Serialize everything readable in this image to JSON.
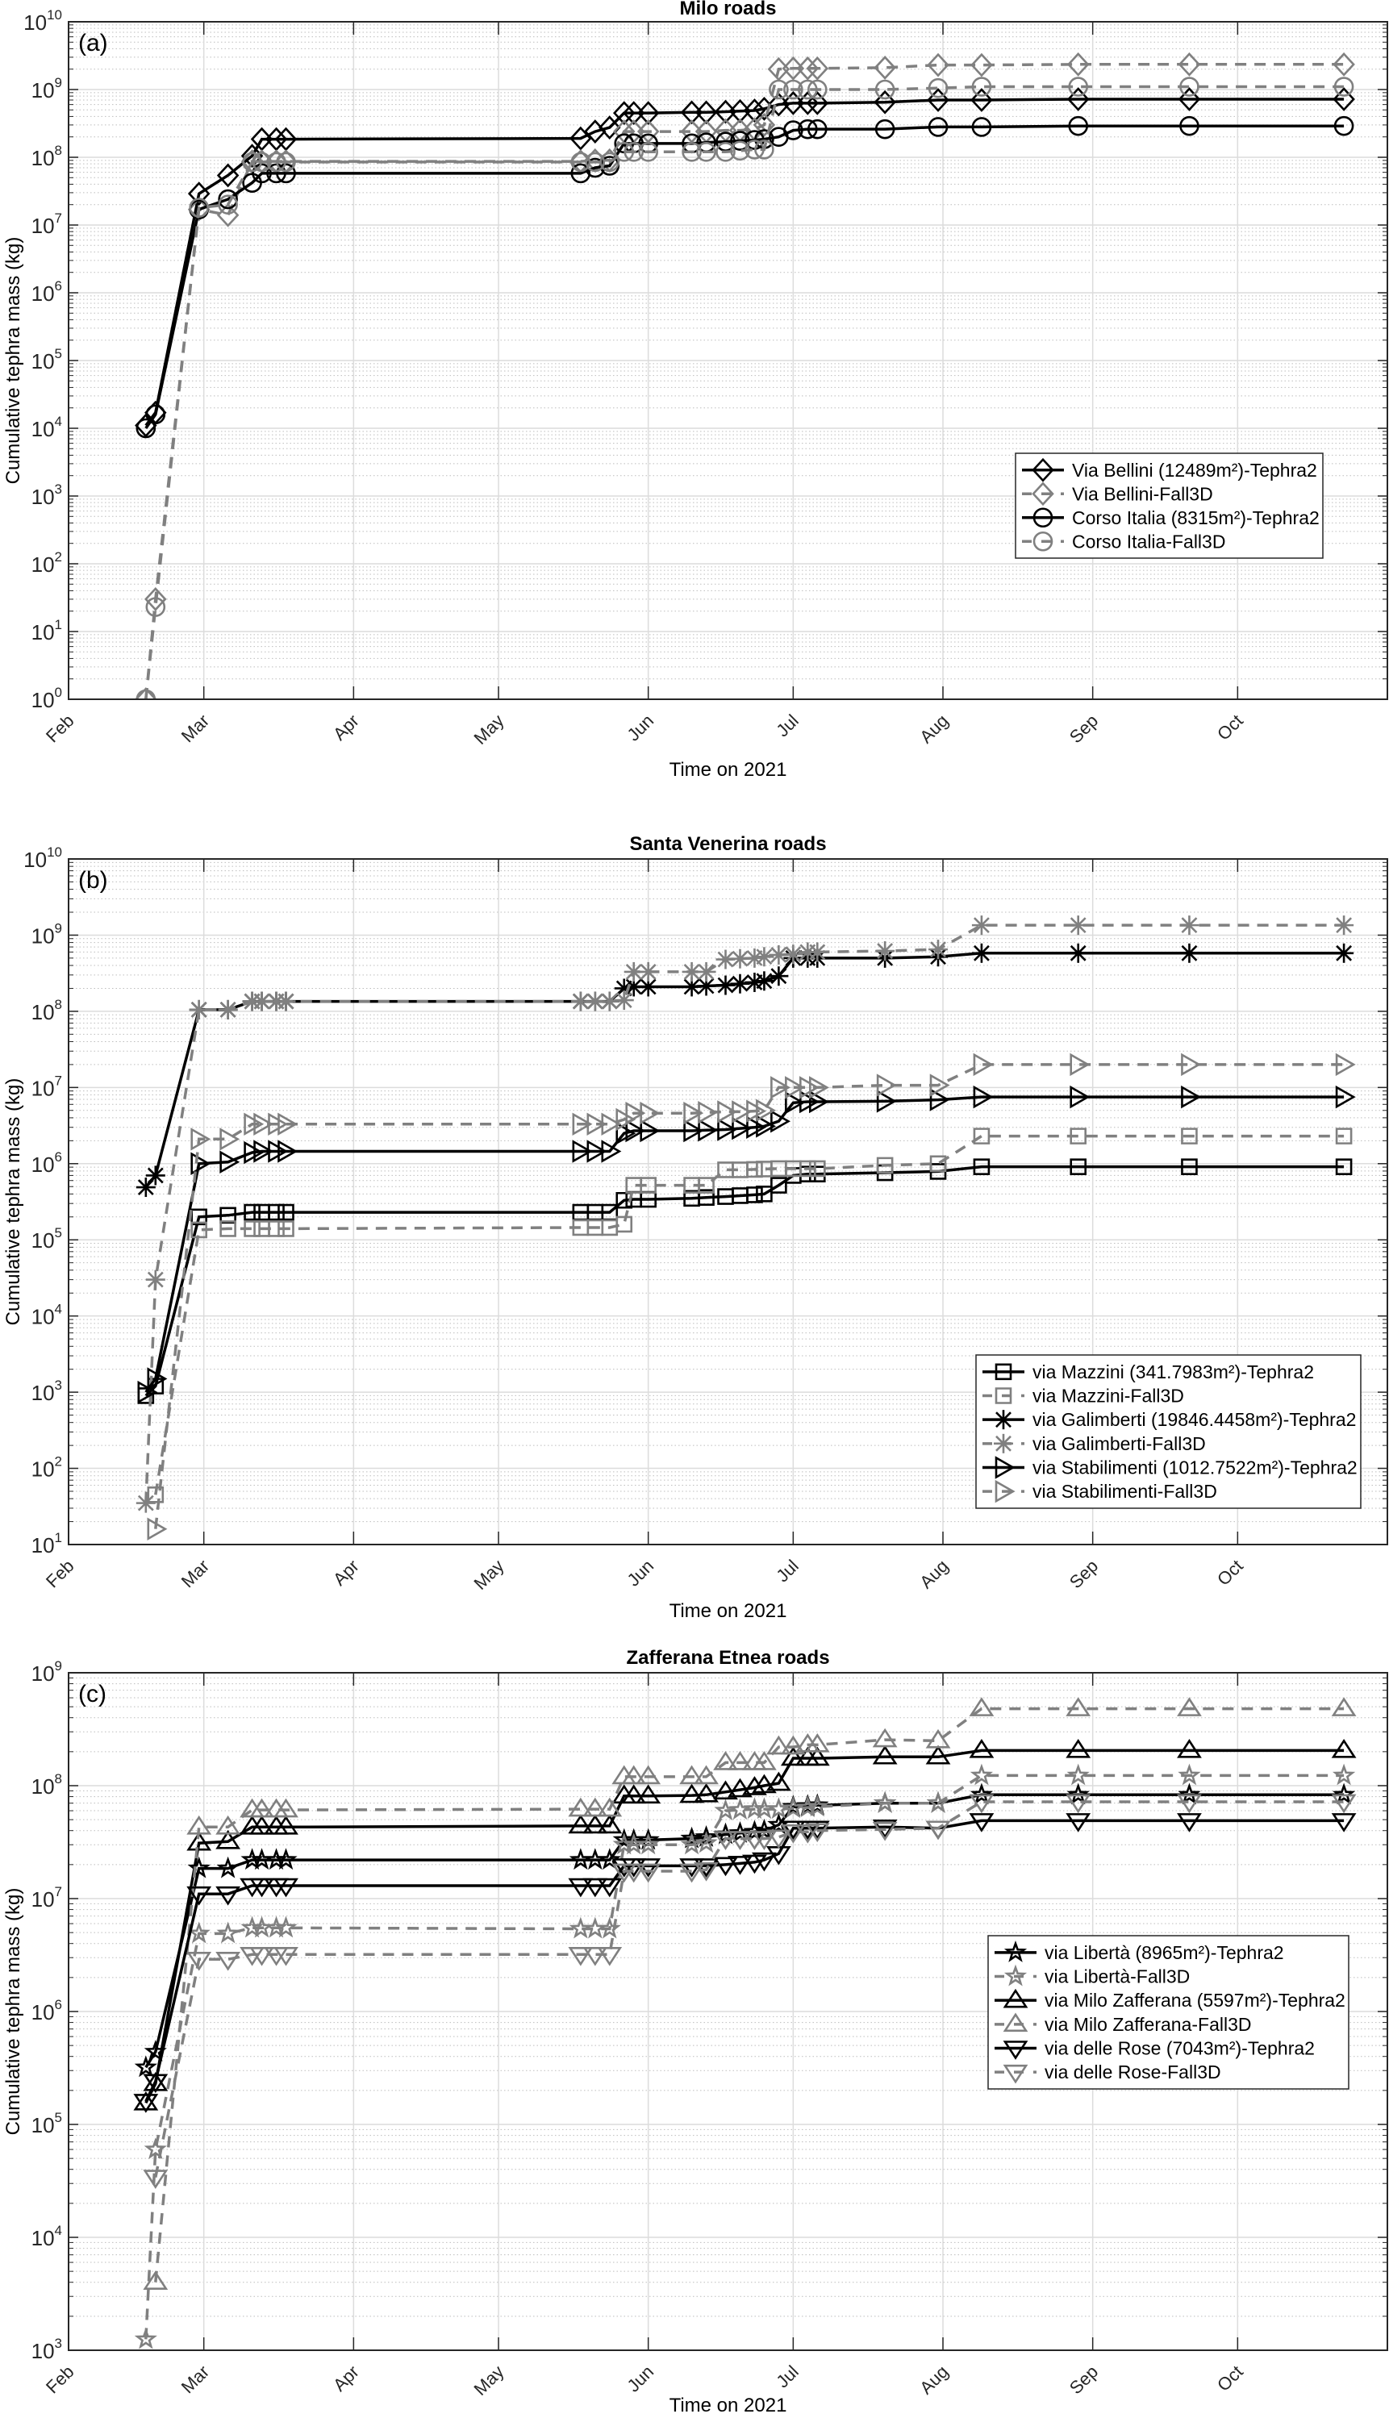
{
  "chart_data": [
    {
      "type": "line",
      "panel_label": "(a)",
      "title": "Milo roads",
      "xlabel": "Time on 2021",
      "ylabel": "Cumulative tephra mass (kg)",
      "yscale": "log",
      "ylim": [
        1,
        10000000000
      ],
      "xlim": [
        "2021-02-01",
        "2021-11-01"
      ],
      "xticks": [
        "Feb",
        "Mar",
        "Apr",
        "May",
        "Jun",
        "Jul",
        "Aug",
        "Sep",
        "Oct"
      ],
      "grid": true,
      "legend_position": "right",
      "x": [
        "2021-02-17",
        "2021-02-19",
        "2021-02-28",
        "2021-03-06",
        "2021-03-11",
        "2021-03-13",
        "2021-03-16",
        "2021-03-18",
        "2021-05-18",
        "2021-05-21",
        "2021-05-24",
        "2021-05-27",
        "2021-05-29",
        "2021-06-01",
        "2021-06-10",
        "2021-06-13",
        "2021-06-17",
        "2021-06-20",
        "2021-06-23",
        "2021-06-25",
        "2021-06-28",
        "2021-07-01",
        "2021-07-04",
        "2021-07-06",
        "2021-07-20",
        "2021-07-31",
        "2021-08-09",
        "2021-08-29",
        "2021-09-21",
        "2021-10-23"
      ],
      "series": [
        {
          "name": "Via Bellini (12489m²)-Tephra2",
          "marker": "diamond",
          "color": "#000000",
          "dashed": false,
          "values": [
            11000.0,
            17000.0,
            29000000.0,
            54000000.0,
            105000000.0,
            185000000.0,
            185000000.0,
            185000000.0,
            190000000.0,
            240000000.0,
            275000000.0,
            450000000.0,
            450000000.0,
            450000000.0,
            460000000.0,
            460000000.0,
            470000000.0,
            480000000.0,
            490000000.0,
            520000000.0,
            600000000.0,
            630000000.0,
            630000000.0,
            630000000.0,
            650000000.0,
            700000000.0,
            700000000.0,
            720000000.0,
            720000000.0,
            720000000.0
          ]
        },
        {
          "name": "Via Bellini-Fall3D",
          "marker": "diamond",
          "color": "#808080",
          "dashed": true,
          "values": [
            1,
            30,
            17000000.0,
            14000000.0,
            87000000.0,
            87000000.0,
            87000000.0,
            87000000.0,
            87000000.0,
            90000000.0,
            90000000.0,
            240000000.0,
            240000000.0,
            240000000.0,
            240000000.0,
            240000000.0,
            250000000.0,
            250000000.0,
            260000000.0,
            300000000.0,
            2000000000.0,
            2050000000.0,
            2050000000.0,
            2050000000.0,
            2100000000.0,
            2300000000.0,
            2300000000.0,
            2350000000.0,
            2350000000.0,
            2350000000.0
          ]
        },
        {
          "name": "Corso Italia (8315m²)-Tephra2",
          "marker": "circle",
          "color": "#000000",
          "dashed": false,
          "values": [
            10000.0,
            16000.0,
            17000000.0,
            24000000.0,
            42000000.0,
            58000000.0,
            58000000.0,
            58000000.0,
            58000000.0,
            70000000.0,
            75000000.0,
            160000000.0,
            160000000.0,
            160000000.0,
            160000000.0,
            165000000.0,
            170000000.0,
            175000000.0,
            180000000.0,
            185000000.0,
            200000000.0,
            250000000.0,
            260000000.0,
            260000000.0,
            260000000.0,
            280000000.0,
            280000000.0,
            290000000.0,
            290000000.0,
            290000000.0
          ]
        },
        {
          "name": "Corso Italia-Fall3D",
          "marker": "circle",
          "color": "#808080",
          "dashed": true,
          "values": [
            1,
            23,
            18000000.0,
            20000000.0,
            85000000.0,
            85000000.0,
            85000000.0,
            85000000.0,
            85000000.0,
            85000000.0,
            85000000.0,
            120000000.0,
            120000000.0,
            120000000.0,
            120000000.0,
            120000000.0,
            120000000.0,
            125000000.0,
            130000000.0,
            130000000.0,
            1000000000.0,
            1000000000.0,
            1000000000.0,
            1000000000.0,
            1000000000.0,
            1050000000.0,
            1100000000.0,
            1100000000.0,
            1100000000.0,
            1100000000.0
          ]
        }
      ]
    },
    {
      "type": "line",
      "panel_label": "(b)",
      "title": "Santa Venerina roads",
      "xlabel": "Time on 2021",
      "ylabel": "Cumulative tephra mass (kg)",
      "yscale": "log",
      "ylim": [
        10,
        10000000000
      ],
      "xlim": [
        "2021-02-01",
        "2021-11-01"
      ],
      "xticks": [
        "Feb",
        "Mar",
        "Apr",
        "May",
        "Jun",
        "Jul",
        "Aug",
        "Sep",
        "Oct"
      ],
      "grid": true,
      "legend_position": "bottom-right",
      "x": [
        "2021-02-17",
        "2021-02-19",
        "2021-02-28",
        "2021-03-06",
        "2021-03-11",
        "2021-03-13",
        "2021-03-16",
        "2021-03-18",
        "2021-05-18",
        "2021-05-21",
        "2021-05-24",
        "2021-05-27",
        "2021-05-29",
        "2021-06-01",
        "2021-06-10",
        "2021-06-13",
        "2021-06-17",
        "2021-06-20",
        "2021-06-23",
        "2021-06-25",
        "2021-06-28",
        "2021-07-01",
        "2021-07-04",
        "2021-07-06",
        "2021-07-20",
        "2021-07-31",
        "2021-08-09",
        "2021-08-29",
        "2021-09-21",
        "2021-10-23"
      ],
      "series": [
        {
          "name": "via Mazzini (341.7983m²)-Tephra2",
          "marker": "square",
          "color": "#000000",
          "dashed": false,
          "values": [
            900,
            1200,
            200000.0,
            210000.0,
            230000.0,
            230000.0,
            230000.0,
            230000.0,
            230000.0,
            230000.0,
            230000.0,
            330000.0,
            340000.0,
            340000.0,
            350000.0,
            360000.0,
            370000.0,
            380000.0,
            390000.0,
            400000.0,
            520000.0,
            700000.0,
            730000.0,
            730000.0,
            760000.0,
            790000.0,
            910000.0,
            910000.0,
            910000.0,
            910000.0
          ]
        },
        {
          "name": "via Mazzini-Fall3D",
          "marker": "square",
          "color": "#808080",
          "dashed": true,
          "values": [
            null,
            45,
            135000.0,
            140000.0,
            140000.0,
            140000.0,
            140000.0,
            140000.0,
            145000.0,
            145000.0,
            145000.0,
            160000.0,
            520000.0,
            520000.0,
            520000.0,
            520000.0,
            830000.0,
            830000.0,
            840000.0,
            850000.0,
            860000.0,
            860000.0,
            860000.0,
            860000.0,
            950000.0,
            1000000.0,
            2300000.0,
            2300000.0,
            2300000.0,
            2300000.0
          ]
        },
        {
          "name": "via Galimberti (19846.4458m²)-Tephra2",
          "marker": "asterisk",
          "color": "#000000",
          "dashed": false,
          "values": [
            490000.0,
            700000.0,
            105000000.0,
            105000000.0,
            135000000.0,
            135000000.0,
            135000000.0,
            135000000.0,
            135000000.0,
            135000000.0,
            135000000.0,
            200000000.0,
            210000000.0,
            210000000.0,
            210000000.0,
            215000000.0,
            220000000.0,
            230000000.0,
            240000000.0,
            250000000.0,
            290000000.0,
            500000000.0,
            500000000.0,
            500000000.0,
            500000000.0,
            520000000.0,
            580000000.0,
            580000000.0,
            580000000.0,
            580000000.0
          ]
        },
        {
          "name": "via Galimberti-Fall3D",
          "marker": "asterisk",
          "color": "#808080",
          "dashed": true,
          "values": [
            35,
            30000.0,
            105000000.0,
            105000000.0,
            135000000.0,
            135000000.0,
            135000000.0,
            135000000.0,
            135000000.0,
            135000000.0,
            135000000.0,
            140000000.0,
            330000000.0,
            330000000.0,
            330000000.0,
            330000000.0,
            480000000.0,
            490000000.0,
            500000000.0,
            520000000.0,
            550000000.0,
            560000000.0,
            600000000.0,
            600000000.0,
            620000000.0,
            650000000.0,
            1350000000.0,
            1350000000.0,
            1350000000.0,
            1350000000.0
          ]
        },
        {
          "name": "via Stabilimenti (1012.7522m²)-Tephra2",
          "marker": "triangle-right",
          "color": "#000000",
          "dashed": false,
          "values": [
            1000,
            1500,
            1000000.0,
            1050000.0,
            1400000.0,
            1450000.0,
            1450000.0,
            1450000.0,
            1450000.0,
            1450000.0,
            1450000.0,
            2500000.0,
            2700000.0,
            2700000.0,
            2700000.0,
            2750000.0,
            2800000.0,
            2900000.0,
            3000000.0,
            3100000.0,
            3600000.0,
            6300000.0,
            6500000.0,
            6500000.0,
            6600000.0,
            6900000.0,
            7500000.0,
            7500000.0,
            7500000.0,
            7500000.0
          ]
        },
        {
          "name": "via Stabilimenti-Fall3D",
          "marker": "triangle-right",
          "color": "#808080",
          "dashed": true,
          "values": [
            null,
            16,
            2100000.0,
            2100000.0,
            3300000.0,
            3300000.0,
            3300000.0,
            3300000.0,
            3300000.0,
            3300000.0,
            3300000.0,
            3800000.0,
            4600000.0,
            4600000.0,
            4600000.0,
            4700000.0,
            4800000.0,
            4800000.0,
            4900000.0,
            5000000.0,
            10000000.0,
            10000000.0,
            10000000.0,
            10000000.0,
            10700000.0,
            10700000.0,
            20000000.0,
            20000000.0,
            20000000.0,
            20000000.0
          ]
        }
      ]
    },
    {
      "type": "line",
      "panel_label": "(c)",
      "title": "Zafferana Etnea roads",
      "xlabel": "Time on 2021",
      "ylabel": "Cumulative tephra mass (kg)",
      "yscale": "log",
      "ylim": [
        1000,
        1000000000
      ],
      "xlim": [
        "2021-02-01",
        "2021-11-01"
      ],
      "xticks": [
        "Feb",
        "Mar",
        "Apr",
        "May",
        "Jun",
        "Jul",
        "Aug",
        "Sep",
        "Oct"
      ],
      "grid": true,
      "legend_position": "right",
      "x": [
        "2021-02-17",
        "2021-02-19",
        "2021-02-28",
        "2021-03-06",
        "2021-03-11",
        "2021-03-13",
        "2021-03-16",
        "2021-03-18",
        "2021-05-18",
        "2021-05-21",
        "2021-05-24",
        "2021-05-27",
        "2021-05-29",
        "2021-06-01",
        "2021-06-10",
        "2021-06-13",
        "2021-06-17",
        "2021-06-20",
        "2021-06-23",
        "2021-06-25",
        "2021-06-28",
        "2021-07-01",
        "2021-07-04",
        "2021-07-06",
        "2021-07-20",
        "2021-07-31",
        "2021-08-09",
        "2021-08-29",
        "2021-09-21",
        "2021-10-23"
      ],
      "series": [
        {
          "name": "via Libertà (8965m²)-Tephra2",
          "marker": "star",
          "color": "#000000",
          "dashed": false,
          "values": [
            320000.0,
            440000.0,
            18500000.0,
            18500000.0,
            22000000.0,
            22000000.0,
            22000000.0,
            22000000.0,
            22000000.0,
            22000000.0,
            22000000.0,
            33000000.0,
            33000000.0,
            33000000.0,
            34000000.0,
            35000000.0,
            37000000.0,
            38000000.0,
            39000000.0,
            40000000.0,
            45000000.0,
            65000000.0,
            66000000.0,
            67000000.0,
            70000000.0,
            70000000.0,
            83000000.0,
            83000000.0,
            83000000.0,
            83000000.0
          ]
        },
        {
          "name": "via Libertà-Fall3D",
          "marker": "star",
          "color": "#808080",
          "dashed": true,
          "values": [
            1250,
            60000.0,
            4900000.0,
            4900000.0,
            5500000.0,
            5500000.0,
            5500000.0,
            5500000.0,
            5400000.0,
            5400000.0,
            5400000.0,
            30000000.0,
            30000000.0,
            30000000.0,
            30000000.0,
            31000000.0,
            60000000.0,
            61000000.0,
            62000000.0,
            62000000.0,
            62000000.0,
            63000000.0,
            64000000.0,
            65000000.0,
            70000000.0,
            70000000.0,
            123000000.0,
            123000000.0,
            123000000.0,
            123000000.0
          ]
        },
        {
          "name": "via Milo Zafferana (5597m²)-Tephra2",
          "marker": "triangle-up",
          "color": "#000000",
          "dashed": false,
          "values": [
            155000.0,
            230000.0,
            31000000.0,
            32000000.0,
            43000000.0,
            43000000.0,
            43000000.0,
            43000000.0,
            44000000.0,
            44000000.0,
            44000000.0,
            81000000.0,
            81000000.0,
            81000000.0,
            82000000.0,
            83000000.0,
            88000000.0,
            92000000.0,
            96000000.0,
            100000000.0,
            105000000.0,
            175000000.0,
            175000000.0,
            175000000.0,
            180000000.0,
            180000000.0,
            205000000.0,
            205000000.0,
            205000000.0,
            205000000.0
          ]
        },
        {
          "name": "via Milo Zafferana-Fall3D",
          "marker": "triangle-up",
          "color": "#808080",
          "dashed": true,
          "values": [
            null,
            4000,
            43000000.0,
            43000000.0,
            61000000.0,
            61000000.0,
            61000000.0,
            61000000.0,
            62000000.0,
            62000000.0,
            62000000.0,
            120000000.0,
            120000000.0,
            120000000.0,
            120000000.0,
            120000000.0,
            160000000.0,
            160000000.0,
            160000000.0,
            160000000.0,
            220000000.0,
            220000000.0,
            230000000.0,
            230000000.0,
            255000000.0,
            250000000.0,
            480000000.0,
            480000000.0,
            480000000.0,
            480000000.0
          ]
        },
        {
          "name": "via delle Rose (7043m²)-Tephra2",
          "marker": "triangle-down",
          "color": "#000000",
          "dashed": false,
          "values": [
            160000.0,
            240000.0,
            11000000.0,
            11000000.0,
            13000000.0,
            13000000.0,
            13000000.0,
            13000000.0,
            13000000.0,
            13000000.0,
            13000000.0,
            19500000.0,
            19500000.0,
            19500000.0,
            19500000.0,
            19500000.0,
            20000000.0,
            20500000.0,
            21000000.0,
            22000000.0,
            25000000.0,
            42000000.0,
            42000000.0,
            42000000.0,
            43000000.0,
            42000000.0,
            49000000.0,
            49000000.0,
            49000000.0,
            49000000.0
          ]
        },
        {
          "name": "via delle Rose-Fall3D",
          "marker": "triangle-down",
          "color": "#808080",
          "dashed": true,
          "values": [
            null,
            34000.0,
            2900000.0,
            2900000.0,
            3200000.0,
            3200000.0,
            3200000.0,
            3200000.0,
            3200000.0,
            3200000.0,
            3200000.0,
            17500000.0,
            17500000.0,
            17500000.0,
            17500000.0,
            18000000.0,
            34000000.0,
            34000000.0,
            34000000.0,
            34000000.0,
            35000000.0,
            39000000.0,
            39000000.0,
            40000000.0,
            41000000.0,
            42000000.0,
            72000000.0,
            72000000.0,
            72000000.0,
            72000000.0
          ]
        }
      ]
    }
  ]
}
